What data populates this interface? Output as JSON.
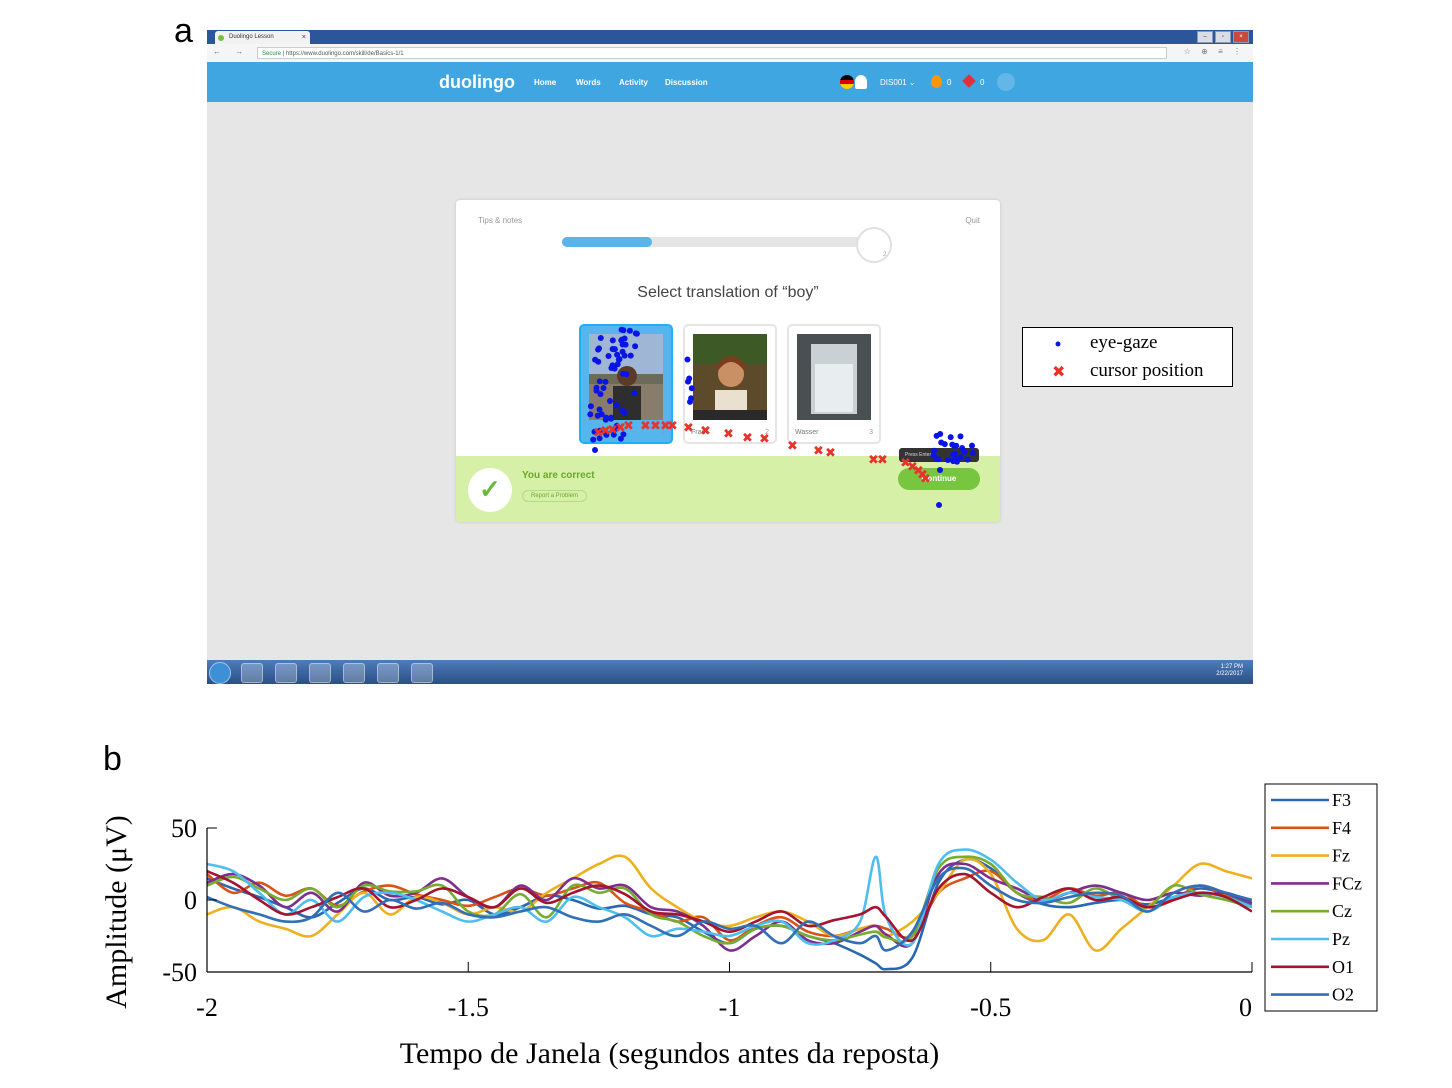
{
  "panels": {
    "a": "a",
    "b": "b"
  },
  "browser": {
    "tab_title": "Duolingo Lesson",
    "tab_close": "×",
    "win_buttons": [
      "–",
      "▫",
      "×"
    ],
    "nav_glyphs": "← → C",
    "url_secure": "Secure",
    "url": "https://www.duolingo.com/skill/de/Basics-1/1",
    "toolbar_glyphs": "☆ ⊕ ≡ ⋮"
  },
  "duolingo": {
    "logo": "duolingo",
    "nav": [
      "Home",
      "Words",
      "Activity",
      "Discussion"
    ],
    "username": "DIS001 ⌄",
    "streak": "0",
    "gems": "0"
  },
  "lesson": {
    "tips": "Tips & notes",
    "quit": "Quit",
    "progress": 0.3,
    "progress_badge": "2",
    "question": "Select translation of “boy”",
    "choices": [
      {
        "label": "",
        "num": "1",
        "selected": true
      },
      {
        "label": "Frau",
        "num": "2",
        "selected": false
      },
      {
        "label": "Wasser",
        "num": "3",
        "selected": false
      }
    ],
    "feedback": "You are correct",
    "report": "Report a Problem",
    "continue_label": "Continue",
    "tooltip": "Press Enter"
  },
  "taskbar": {
    "time": "1:27 PM",
    "date": "2/22/2017",
    "icons": [
      "explorer-icon",
      "chrome-icon",
      "tools-icon",
      "paint-icon",
      "media-icon",
      "disc-icon"
    ]
  },
  "overlay": {
    "colors": {
      "gaze": "#0a14e6",
      "cursor": "#e8332a"
    }
  },
  "legend_a": {
    "entries": [
      {
        "label": "eye-gaze",
        "marker": "dot",
        "color": "#0a14e6"
      },
      {
        "label": "cursor position",
        "marker": "x",
        "color": "#e8332a"
      }
    ]
  },
  "chart_data": {
    "type": "line",
    "xlabel": "Tempo de Janela (segundos antes da reposta)",
    "ylabel": "Amplitude (μV)",
    "xlim": [
      -2,
      0
    ],
    "ylim": [
      -50,
      50
    ],
    "xticks": [
      -2,
      -1.5,
      -1,
      -0.5,
      0
    ],
    "xtick_labels": [
      "-2",
      "-1.5",
      "-1",
      "-0.5",
      "0"
    ],
    "yticks": [
      -50,
      0,
      50
    ],
    "ytick_labels": [
      "-50",
      "0",
      "50"
    ],
    "grid": false,
    "legend_position": "right",
    "x": [
      -2.0,
      -1.95,
      -1.9,
      -1.85,
      -1.8,
      -1.75,
      -1.7,
      -1.65,
      -1.6,
      -1.55,
      -1.5,
      -1.45,
      -1.4,
      -1.35,
      -1.3,
      -1.25,
      -1.2,
      -1.15,
      -1.1,
      -1.05,
      -1.0,
      -0.95,
      -0.9,
      -0.85,
      -0.8,
      -0.75,
      -0.72,
      -0.7,
      -0.65,
      -0.6,
      -0.55,
      -0.5,
      -0.45,
      -0.4,
      -0.35,
      -0.3,
      -0.25,
      -0.2,
      -0.15,
      -0.1,
      -0.05,
      0.0
    ],
    "series": [
      {
        "name": "F3",
        "color": "#2a67b1",
        "values": [
          15,
          8,
          2,
          -5,
          -12,
          -2,
          8,
          0,
          2,
          -3,
          0,
          -10,
          -5,
          3,
          0,
          -6,
          -4,
          -10,
          -12,
          -22,
          -30,
          -20,
          -18,
          -25,
          -30,
          -38,
          -44,
          -48,
          -40,
          12,
          28,
          22,
          5,
          -3,
          -5,
          -2,
          0,
          -3,
          2,
          8,
          4,
          -3
        ]
      },
      {
        "name": "F4",
        "color": "#d95319",
        "values": [
          18,
          5,
          12,
          3,
          8,
          -4,
          6,
          10,
          4,
          0,
          -4,
          2,
          8,
          3,
          8,
          12,
          -2,
          -8,
          -15,
          -12,
          -28,
          -18,
          -12,
          -22,
          -25,
          -20,
          -18,
          -20,
          -25,
          5,
          15,
          20,
          5,
          0,
          8,
          3,
          5,
          -5,
          0,
          10,
          3,
          -5
        ]
      },
      {
        "name": "Fz",
        "color": "#edb120",
        "values": [
          -10,
          -5,
          -15,
          -20,
          -25,
          -10,
          5,
          -10,
          2,
          -2,
          -10,
          -5,
          -8,
          5,
          15,
          25,
          30,
          8,
          -5,
          -15,
          -18,
          -12,
          -8,
          -15,
          -25,
          -20,
          -18,
          -25,
          -15,
          5,
          28,
          18,
          -20,
          -28,
          -10,
          -35,
          -20,
          -5,
          10,
          25,
          20,
          15
        ]
      },
      {
        "name": "FCz",
        "color": "#7e2f8e",
        "values": [
          12,
          18,
          10,
          -5,
          5,
          -8,
          12,
          3,
          5,
          15,
          2,
          -5,
          10,
          0,
          15,
          8,
          10,
          -5,
          -8,
          -18,
          -35,
          -25,
          -15,
          -28,
          -30,
          -22,
          -18,
          -24,
          -30,
          18,
          25,
          15,
          8,
          0,
          5,
          10,
          5,
          0,
          5,
          3,
          5,
          -2
        ]
      },
      {
        "name": "Cz",
        "color": "#77ac30",
        "values": [
          10,
          16,
          8,
          0,
          8,
          -5,
          10,
          6,
          6,
          10,
          -8,
          -10,
          4,
          -12,
          10,
          5,
          8,
          -10,
          -15,
          -25,
          -30,
          -20,
          -18,
          -25,
          -28,
          -24,
          -22,
          -26,
          -25,
          22,
          30,
          25,
          5,
          2,
          -2,
          8,
          0,
          -5,
          10,
          4,
          0,
          -5
        ]
      },
      {
        "name": "Pz",
        "color": "#4dbeee",
        "values": [
          25,
          20,
          5,
          -10,
          0,
          -15,
          2,
          5,
          0,
          -8,
          -15,
          -10,
          -5,
          -15,
          2,
          -5,
          -12,
          -25,
          -20,
          -22,
          -25,
          -18,
          -15,
          -30,
          -28,
          -15,
          30,
          -12,
          -30,
          25,
          35,
          28,
          12,
          0,
          5,
          2,
          0,
          -8,
          2,
          5,
          2,
          -5
        ]
      },
      {
        "name": "O1",
        "color": "#a2142f",
        "values": [
          20,
          12,
          0,
          -10,
          -5,
          2,
          8,
          -5,
          0,
          8,
          2,
          -5,
          8,
          -2,
          5,
          10,
          4,
          -8,
          -10,
          -15,
          -22,
          -15,
          -8,
          -18,
          -14,
          -10,
          -5,
          -12,
          -28,
          8,
          18,
          5,
          -5,
          2,
          8,
          0,
          2,
          -5,
          0,
          5,
          2,
          -8
        ]
      },
      {
        "name": "O2",
        "color": "#316fb6",
        "values": [
          2,
          -5,
          -10,
          -15,
          -12,
          5,
          -8,
          0,
          -6,
          -2,
          -10,
          -12,
          -8,
          -5,
          -12,
          -15,
          -10,
          -18,
          -25,
          -15,
          -20,
          -18,
          -30,
          -15,
          -25,
          -30,
          -25,
          -35,
          -22,
          15,
          22,
          10,
          0,
          -2,
          2,
          5,
          3,
          -8,
          5,
          10,
          5,
          0
        ]
      }
    ]
  }
}
